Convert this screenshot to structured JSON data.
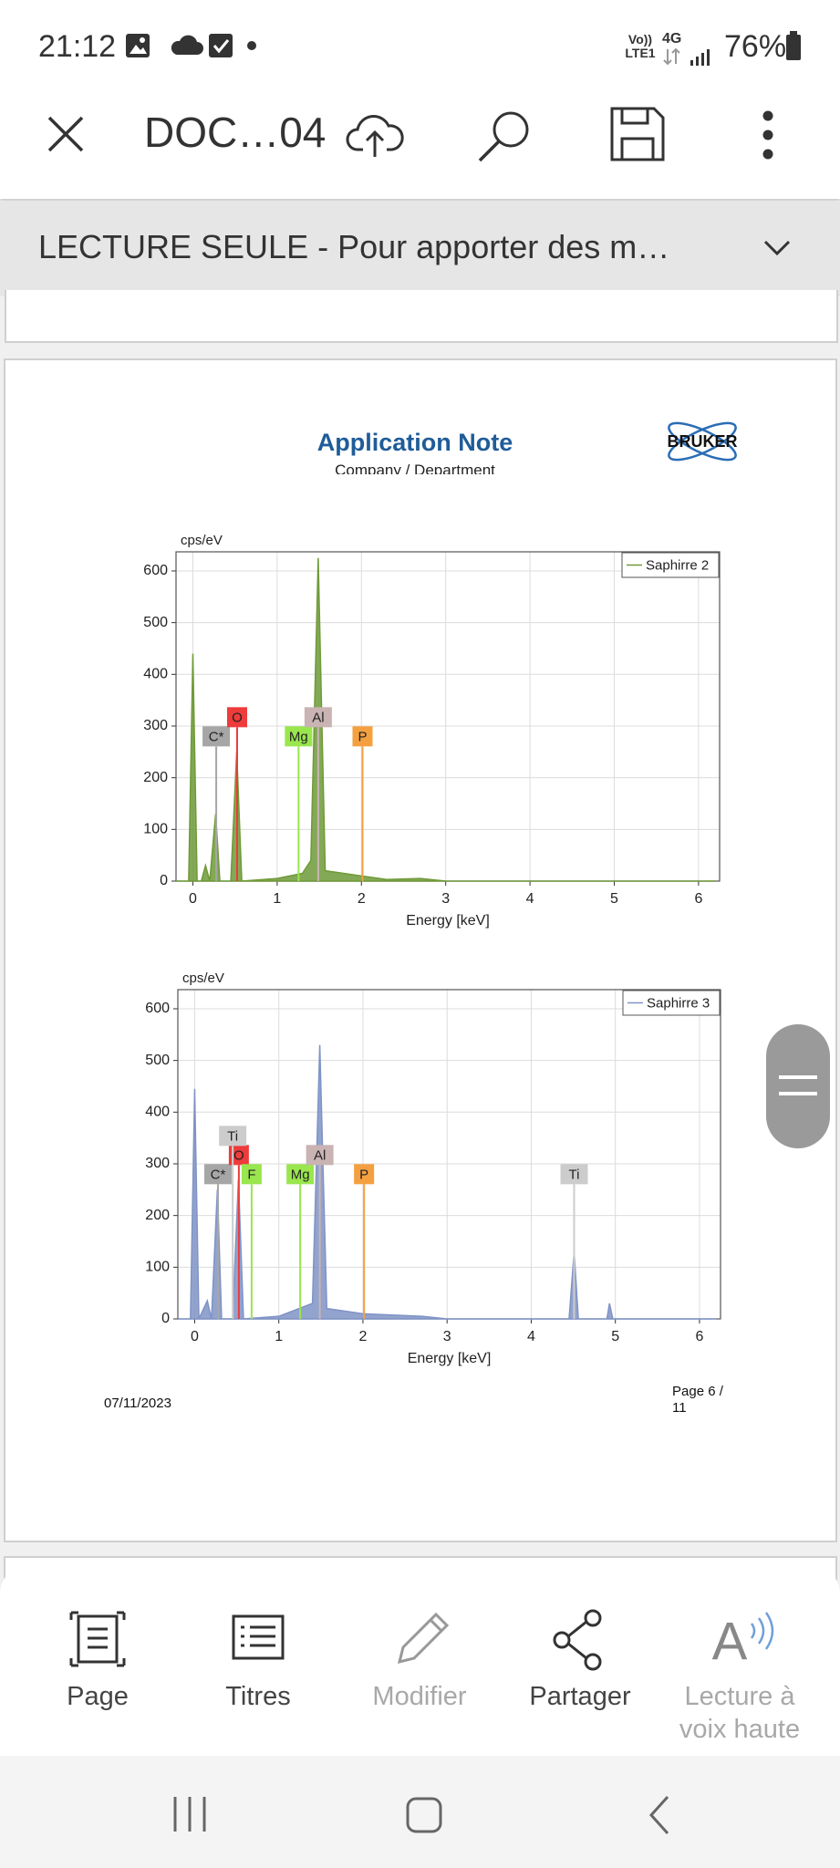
{
  "status_bar": {
    "time": "21:12",
    "network": "Vo)) LTE1",
    "signal": "4G",
    "battery": "76%"
  },
  "toolbar": {
    "doc_name": "DOC…04"
  },
  "banner": {
    "text": "LECTURE SEULE - Pour apporter des m…"
  },
  "document": {
    "title": "Application Note",
    "subtitle": "Company / Department",
    "logo": "BRUKER",
    "date": "07/11/2023",
    "page": "Page 6 / 11"
  },
  "chart_data": [
    {
      "type": "area",
      "y_label": "cps/eV",
      "x_label": "Energy [keV]",
      "x": [
        -0.2,
        -0.05,
        0,
        0.05,
        0.1,
        0.15,
        0.2,
        0.27,
        0.32,
        0.45,
        0.52,
        0.58,
        1,
        1.3,
        1.4,
        1.487,
        1.57,
        2,
        2.3,
        2.7,
        3,
        6.2
      ],
      "series": [
        {
          "name": "Saphirre 2",
          "color": "#6f9a38",
          "values": [
            0,
            0,
            440,
            0,
            0,
            30,
            0,
            130,
            0,
            0,
            250,
            0,
            5,
            15,
            40,
            625,
            20,
            10,
            3,
            5,
            0,
            0
          ]
        }
      ],
      "annotations": [
        {
          "label": "C*",
          "x": 0.277,
          "color": "#a6a6a6"
        },
        {
          "label": "O",
          "x": 0.525,
          "color": "#ee3b3b"
        },
        {
          "label": "Mg",
          "x": 1.254,
          "color": "#99e64d"
        },
        {
          "label": "Al",
          "x": 1.487,
          "color": "#c9b3b3"
        },
        {
          "label": "P",
          "x": 2.013,
          "color": "#f5a040"
        }
      ],
      "xlim": [
        -0.2,
        6.25
      ],
      "ylim": [
        0,
        637
      ],
      "xticks": [
        0,
        1,
        2,
        3,
        4,
        5,
        6
      ],
      "yticks": [
        0,
        100,
        200,
        300,
        400,
        500,
        600
      ],
      "grid": true,
      "legend": "top-right"
    },
    {
      "type": "area",
      "y_label": "cps/eV",
      "x_label": "Energy [keV]",
      "x": [
        -0.2,
        -0.05,
        0,
        0.05,
        0.15,
        0.2,
        0.27,
        0.32,
        0.45,
        0.52,
        0.58,
        1,
        1.4,
        1.487,
        1.57,
        2,
        2.7,
        3,
        4.45,
        4.51,
        4.56,
        4.9,
        4.93,
        4.97,
        6.2
      ],
      "series": [
        {
          "name": "Saphirre 3",
          "color": "#7f93c6",
          "values": [
            0,
            0,
            445,
            0,
            35,
            0,
            250,
            0,
            0,
            270,
            0,
            5,
            30,
            530,
            20,
            10,
            5,
            0,
            0,
            130,
            0,
            0,
            30,
            0,
            0
          ]
        }
      ],
      "annotations": [
        {
          "label": "C*",
          "x": 0.277,
          "color": "#a6a6a6"
        },
        {
          "label": "O",
          "x": 0.525,
          "color": "#ee3b3b"
        },
        {
          "label": "Ti",
          "x": 0.452,
          "color": "#cccccc"
        },
        {
          "label": "F",
          "x": 0.677,
          "color": "#99e64d"
        },
        {
          "label": "Mg",
          "x": 1.254,
          "color": "#99e64d"
        },
        {
          "label": "Al",
          "x": 1.487,
          "color": "#c9b3b3"
        },
        {
          "label": "P",
          "x": 2.013,
          "color": "#f5a040"
        },
        {
          "label": "Ti",
          "x": 4.51,
          "color": "#cccccc"
        }
      ],
      "xlim": [
        -0.2,
        6.25
      ],
      "ylim": [
        0,
        637
      ],
      "xticks": [
        0,
        1,
        2,
        3,
        4,
        5,
        6
      ],
      "yticks": [
        0,
        100,
        200,
        300,
        400,
        500,
        600
      ],
      "grid": true,
      "legend": "top-right"
    }
  ],
  "bottom_bar": {
    "items": [
      "Page",
      "Titres",
      "Modifier",
      "Partager",
      "Lecture à voix haute"
    ]
  }
}
